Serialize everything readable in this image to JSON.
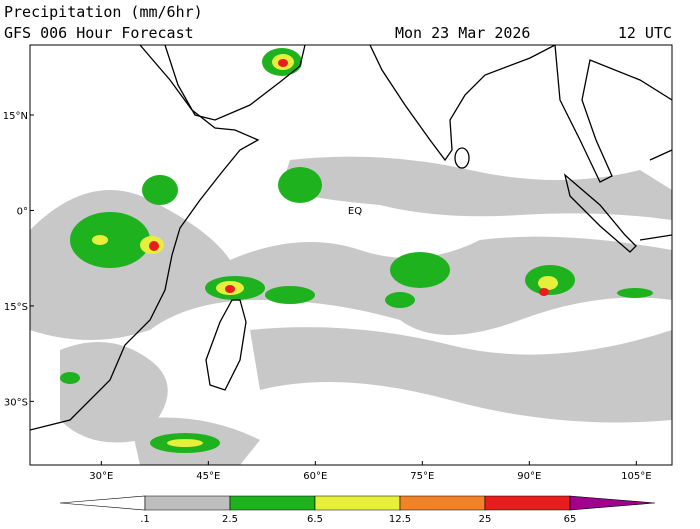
{
  "header": {
    "title": "Precipitation (mm/6hr)",
    "subtitle": "GFS 006 Hour Forecast",
    "date": "Mon 23 Mar 2026",
    "time": "12 UTC"
  },
  "map": {
    "xlim": [
      20,
      110
    ],
    "ylim": [
      -40,
      26
    ],
    "xticks": [
      {
        "value": 30,
        "label": "30°E"
      },
      {
        "value": 45,
        "label": "45°E"
      },
      {
        "value": 60,
        "label": "60°E"
      },
      {
        "value": 75,
        "label": "75°E"
      },
      {
        "value": 90,
        "label": "90°E"
      },
      {
        "value": 105,
        "label": "105°E"
      }
    ],
    "yticks": [
      {
        "value": 15,
        "label": "15°N"
      },
      {
        "value": 0,
        "label": "0°"
      },
      {
        "value": -15,
        "label": "15°S"
      },
      {
        "value": -30,
        "label": "30°S"
      }
    ],
    "annotation": "EQ"
  },
  "colorbar": {
    "levels": [
      {
        "value": 0.1,
        "label": ".1"
      },
      2.5,
      6.5,
      12.5,
      25,
      65
    ],
    "colors": [
      "#ffffff",
      "#bebebe",
      "#1fb21f",
      "#e6f03c",
      "#f08228",
      "#e61e1e",
      "#a0008c"
    ]
  }
}
